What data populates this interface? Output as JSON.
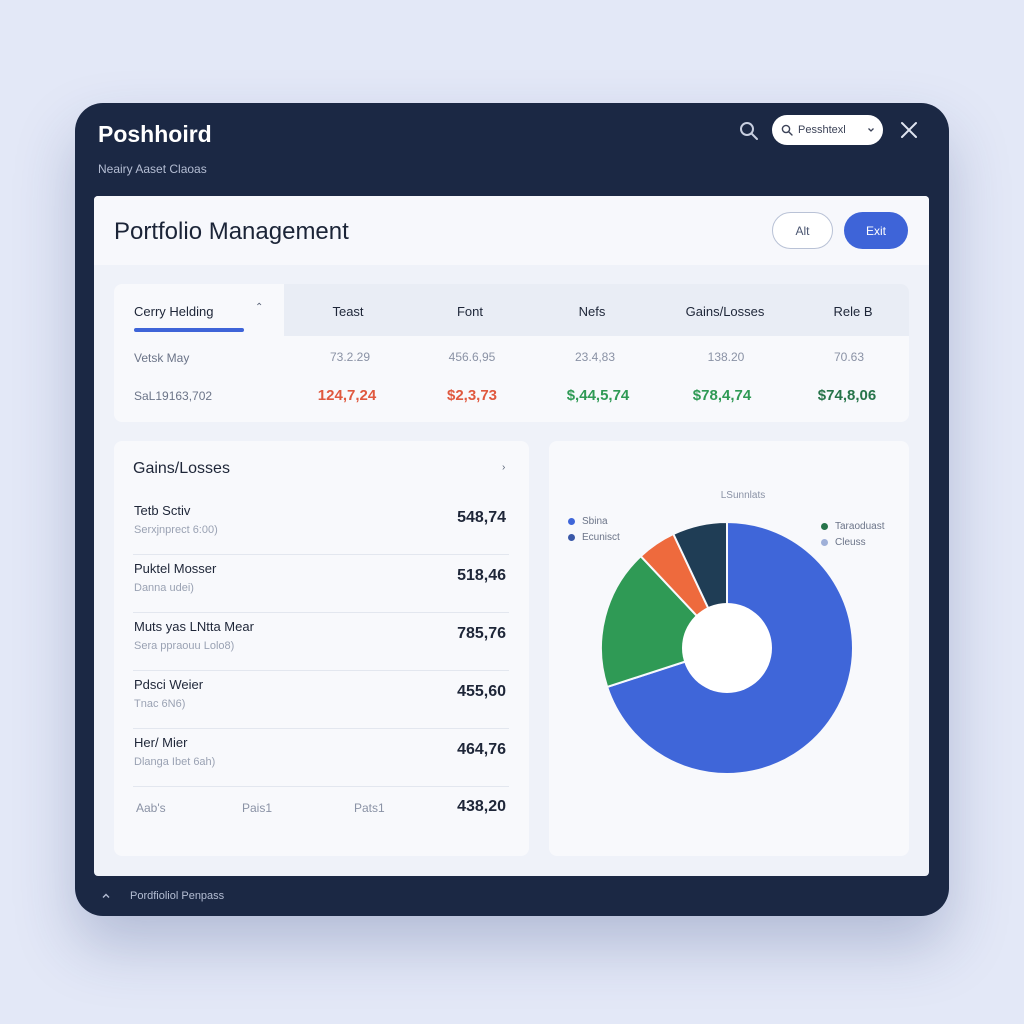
{
  "app": {
    "title": "Poshhoird",
    "subtitle": "Neairy Aaset Claoas",
    "search_label": "Pesshtexl"
  },
  "page": {
    "title": "Portfolio Management",
    "btn_alt": "Alt",
    "btn_edit": "Exit"
  },
  "holdings": {
    "tab_label": "Cerry Helding",
    "columns": [
      "Teast",
      "Font",
      "Nefs",
      "Gains/Losses",
      "Rele B"
    ],
    "row1_label": "Vetsk May",
    "row1_values": [
      "73.2.29",
      "456.6,95",
      "23.4,83",
      "138.20",
      "70.63"
    ],
    "row2_label": "SaL19163,702",
    "row2_values": [
      "124,7,24",
      "$2,3,73",
      "$,44,5,74",
      "$78,4,74",
      "$74,8,06"
    ],
    "row2_colors": [
      "#e0593f",
      "#e0593f",
      "#2f9a55",
      "#2f9a55",
      "#27744a"
    ]
  },
  "gains": {
    "title": "Gains/Losses",
    "items": [
      {
        "name": "Tetb Sctiv",
        "sub": "Serxjnprect 6:00)",
        "value": "548,74"
      },
      {
        "name": "Puktel Mosser",
        "sub": "Danna udei)",
        "value": "518,46"
      },
      {
        "name": "Muts yas LNtta Mear",
        "sub": "Sera ppraouu Lolo8)",
        "value": "785,76"
      },
      {
        "name": "Pdsci Weier",
        "sub": "Tnac 6N6)",
        "value": "455,60"
      },
      {
        "name": "Her/ Mier",
        "sub": "Dlanga Ibet 6ah)",
        "value": "464,76"
      }
    ],
    "footer": {
      "a": "Aab's",
      "b": "Pais1",
      "c": "Pats1",
      "value": "438,20"
    }
  },
  "chart_data": {
    "type": "pie",
    "title": "LSunnlats",
    "categories": [
      "Blue",
      "Green",
      "Orange",
      "Navy"
    ],
    "values": [
      70,
      18,
      5,
      7
    ],
    "colors": [
      "#3f66d9",
      "#2f9a55",
      "#ee6a3d",
      "#1f3d55"
    ],
    "legend_left": [
      {
        "label": "Sbina",
        "color": "#3f66d9"
      },
      {
        "label": "Ecunisct",
        "color": "#3a58a8"
      }
    ],
    "legend_right": [
      {
        "label": "Taraoduast",
        "color": "#27744a"
      },
      {
        "label": "Cleuss",
        "color": "#9fb0d8"
      }
    ]
  },
  "status": {
    "text": "Pordfioliol Penpass"
  }
}
